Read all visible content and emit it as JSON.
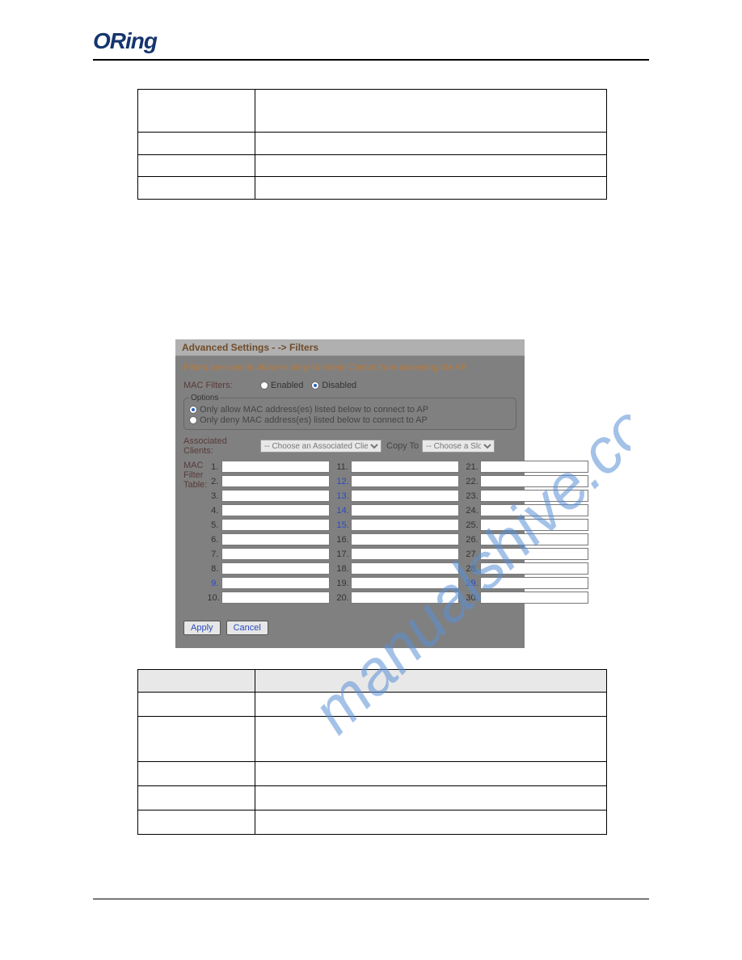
{
  "logo_text": "ORing",
  "screenshot": {
    "banner": "Advanced Settings - -> Filters",
    "intro": "Filters are used to allow or deny Wireless Clients from accessing the AP.",
    "mac_filters_label": "MAC Filters:",
    "opt_enabled": "Enabled",
    "opt_disabled": "Disabled",
    "fieldset_legend": "Options",
    "radio_allow": "Only allow MAC address(es) listed below to connect to AP",
    "radio_deny": "Only deny MAC address(es) listed below to connect to AP",
    "assoc_label1": "Associated",
    "assoc_label2": "Clients:",
    "sel_client": "-- Choose an Associated Client --",
    "copy_to": "Copy To",
    "sel_slot": "-- Choose a Slot --",
    "mac_table_label": "MAC Filter Table:",
    "cols": [
      [
        "1.",
        "2.",
        "3.",
        "4.",
        "5.",
        "6.",
        "7.",
        "8.",
        "9.",
        "10."
      ],
      [
        "11.",
        "12.",
        "13.",
        "14.",
        "15.",
        "16.",
        "17.",
        "18.",
        "19.",
        "20."
      ],
      [
        "21.",
        "22.",
        "23.",
        "24.",
        "25.",
        "26.",
        "27.",
        "28.",
        "29.",
        "30."
      ]
    ],
    "blue_numbers": [
      "9.",
      "12.",
      "13.",
      "14.",
      "15.",
      "29."
    ],
    "btn_apply": "Apply",
    "btn_cancel": "Cancel"
  },
  "colors": {
    "panel_bg": "#808080",
    "banner_bg": "#b0b0b0",
    "watermark": "#5a8fd6"
  },
  "watermark_text": "manualshive.com"
}
